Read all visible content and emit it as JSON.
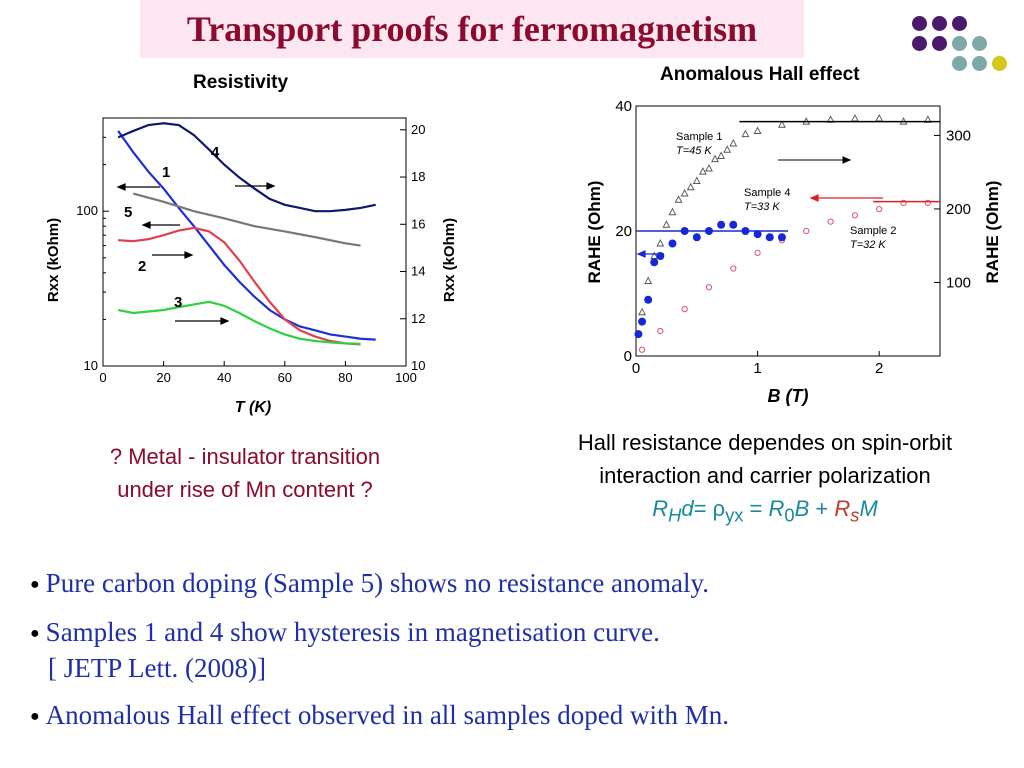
{
  "slide": {
    "title": "Transport proofs for ferromagnetism",
    "left_label": "Resistivity",
    "right_label": "Anomalous Hall effect",
    "left_caption": "? Metal - insulator transition under rise of Mn content ?",
    "right_caption_line1": "Hall resistance dependes on spin-orbit",
    "right_caption_line2": "interaction and carrier polarization",
    "formula": {
      "R": "R",
      "H": "H",
      "d": "d",
      "eq1": "=",
      "rho": "ρ",
      "yx": "yx",
      "eq2": "=",
      "R0": "R",
      "zero": "0",
      "B": "B",
      "plus": "+",
      "Rs": "R",
      "s": "s",
      "M": "M"
    },
    "bullets": [
      "Pure carbon doping (Sample 5) shows no resistance anomaly.",
      "Samples 1 and 4 show hysteresis in magnetisation curve.",
      "Anomalous Hall effect observed in all samples doped with Mn."
    ],
    "bullet2_cont": "[ JETP Lett. (2008)]",
    "dot_colors": [
      "#4b1a6b",
      "#7fa8a8",
      "#d4c81e"
    ]
  },
  "chart_data": [
    {
      "type": "line",
      "xlabel": "T (K)",
      "ylabel_left": "Rxx (kOhm)",
      "ylabel_right": "Rxx (kOhm)",
      "xlim": [
        0,
        100
      ],
      "xticks": [
        "0",
        "20",
        "40",
        "60",
        "80",
        "100"
      ],
      "ylim_left": [
        10,
        400
      ],
      "yscale_left": "log",
      "yticks_left": [
        "10",
        "100"
      ],
      "ylim_right": [
        10,
        20.5
      ],
      "yticks_right": [
        "10",
        "12",
        "14",
        "16",
        "18",
        "20"
      ],
      "grid": false,
      "series": [
        {
          "name": "1",
          "color": "#1f2fd6",
          "x": [
            5,
            10,
            15,
            20,
            25,
            30,
            35,
            40,
            45,
            50,
            55,
            60,
            65,
            70,
            75,
            80,
            85,
            90
          ],
          "y": [
            330,
            240,
            180,
            140,
            105,
            80,
            60,
            45,
            35,
            28,
            23,
            20,
            18,
            17,
            16,
            15.5,
            15,
            14.8
          ]
        },
        {
          "name": "4",
          "color": "#0d1a6b",
          "x": [
            5,
            10,
            15,
            20,
            25,
            30,
            35,
            40,
            45,
            50,
            55,
            60,
            65,
            70,
            75,
            80,
            85,
            90
          ],
          "y": [
            300,
            330,
            360,
            370,
            360,
            310,
            250,
            200,
            165,
            140,
            120,
            110,
            105,
            100,
            100,
            102,
            105,
            110
          ]
        },
        {
          "name": "5",
          "color": "#777777",
          "x": [
            10,
            20,
            30,
            40,
            50,
            60,
            70,
            80,
            85
          ],
          "y": [
            130,
            115,
            100,
            90,
            80,
            74,
            68,
            62,
            60
          ]
        },
        {
          "name": "2",
          "color": "#e04050",
          "x": [
            5,
            10,
            15,
            20,
            25,
            30,
            35,
            40,
            45,
            50,
            55,
            60,
            65,
            70,
            75,
            80,
            85
          ],
          "y": [
            65,
            64,
            66,
            70,
            75,
            78,
            74,
            63,
            48,
            35,
            26,
            20,
            17,
            15.5,
            14.5,
            14,
            13.8
          ]
        },
        {
          "name": "3",
          "color": "#30d040",
          "x": [
            5,
            10,
            15,
            20,
            25,
            30,
            35,
            40,
            45,
            50,
            55,
            60,
            65,
            70,
            75,
            80,
            85
          ],
          "y": [
            23,
            22,
            22.5,
            23,
            24,
            25,
            26,
            24.5,
            22,
            19.5,
            17.5,
            16,
            15,
            14.5,
            14.2,
            14,
            13.9
          ]
        }
      ],
      "annotations": [
        "1",
        "4",
        "5",
        "2",
        "3"
      ]
    },
    {
      "type": "scatter",
      "xlabel": "B (T)",
      "ylabel_left": "RAHE (Ohm)",
      "ylabel_right": "RAHE (Ohm)",
      "xlim": [
        0,
        2.5
      ],
      "xticks": [
        "0",
        "1",
        "2"
      ],
      "ylim_left": [
        0,
        40
      ],
      "yticks_left": [
        "0",
        "20",
        "40"
      ],
      "ylim_right": [
        0,
        340
      ],
      "yticks_right": [
        "100",
        "200",
        "300"
      ],
      "series": [
        {
          "name": "Sample 1",
          "sub": "T=45 K",
          "color": "#555555",
          "x": [
            0.05,
            0.1,
            0.15,
            0.2,
            0.25,
            0.3,
            0.35,
            0.4,
            0.45,
            0.5,
            0.55,
            0.6,
            0.65,
            0.7,
            0.75,
            0.8,
            0.9,
            1.0,
            1.2,
            1.4,
            1.6,
            1.8,
            2.0,
            2.2,
            2.4
          ],
          "y": [
            7,
            12,
            16,
            18,
            21,
            23,
            25,
            26,
            27,
            28,
            29.5,
            30,
            31.5,
            32,
            33,
            34,
            35.5,
            36,
            37,
            37.5,
            37.8,
            38,
            38,
            37.5,
            37.8
          ]
        },
        {
          "name": "Sample 4",
          "sub": "T=33 K",
          "color": "#1428d8",
          "x": [
            0.02,
            0.05,
            0.1,
            0.15,
            0.2,
            0.3,
            0.4,
            0.5,
            0.6,
            0.7,
            0.8,
            0.9,
            1.0,
            1.1,
            1.2
          ],
          "y": [
            3.5,
            5.5,
            9,
            15,
            16,
            18,
            20,
            19,
            20,
            21,
            21,
            20,
            19.5,
            19,
            19
          ]
        },
        {
          "name": "Sample 2",
          "sub": "T=32 K",
          "color": "#e05070",
          "x": [
            0.05,
            0.2,
            0.4,
            0.6,
            0.8,
            1.0,
            1.2,
            1.4,
            1.6,
            1.8,
            2.0,
            2.2,
            2.4
          ],
          "y": [
            1,
            4,
            7.5,
            11,
            14,
            16.5,
            18.5,
            20,
            21.5,
            22.5,
            23.5,
            24.5,
            24.5
          ]
        }
      ]
    }
  ]
}
